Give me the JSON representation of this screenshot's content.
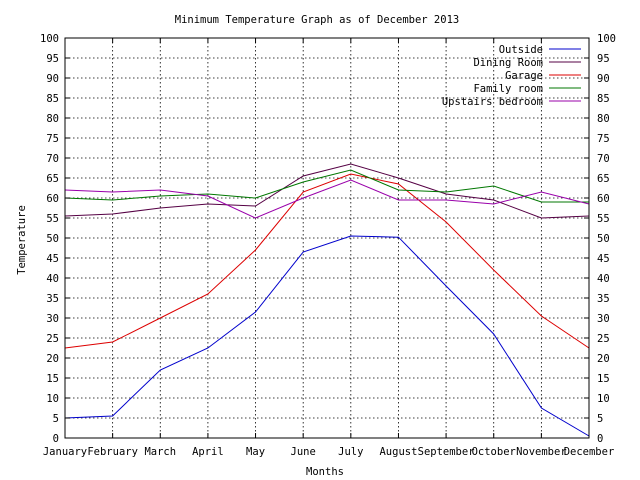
{
  "chart_data": {
    "type": "line",
    "title": "Minimum Temperature Graph as of December 2013",
    "xlabel": "Months",
    "ylabel": "Temperature",
    "categories": [
      "January",
      "February",
      "March",
      "April",
      "May",
      "June",
      "July",
      "August",
      "September",
      "October",
      "November",
      "December"
    ],
    "ylim": [
      0,
      100
    ],
    "yticks": [
      0,
      5,
      10,
      15,
      20,
      25,
      30,
      35,
      40,
      45,
      50,
      55,
      60,
      65,
      70,
      75,
      80,
      85,
      90,
      95,
      100
    ],
    "grid": true,
    "legend_position": "top-right",
    "series": [
      {
        "name": "Outside",
        "color": "#0000cc",
        "values": [
          5.0,
          5.5,
          17.0,
          22.5,
          31.5,
          46.5,
          50.5,
          50.2,
          38.0,
          26.0,
          7.5,
          0.5
        ]
      },
      {
        "name": "Dining Room",
        "color": "#550044",
        "values": [
          55.5,
          56.0,
          57.5,
          58.5,
          58.0,
          65.5,
          68.5,
          65.0,
          61.0,
          59.5,
          55.0,
          55.5
        ]
      },
      {
        "name": "Garage",
        "color": "#dd0000",
        "values": [
          22.5,
          24.0,
          30.0,
          36.0,
          47.0,
          61.5,
          66.0,
          63.5,
          54.0,
          42.0,
          30.5,
          22.5
        ]
      },
      {
        "name": "Family room",
        "color": "#007700",
        "values": [
          60.0,
          59.5,
          60.5,
          61.0,
          60.0,
          64.0,
          67.0,
          62.0,
          61.5,
          63.0,
          59.0,
          59.0
        ]
      },
      {
        "name": "Upstairs bedroom",
        "color": "#9900aa",
        "values": [
          62.0,
          61.5,
          62.0,
          60.5,
          55.0,
          60.0,
          64.5,
          59.5,
          59.5,
          58.5,
          61.5,
          58.5
        ]
      }
    ]
  }
}
